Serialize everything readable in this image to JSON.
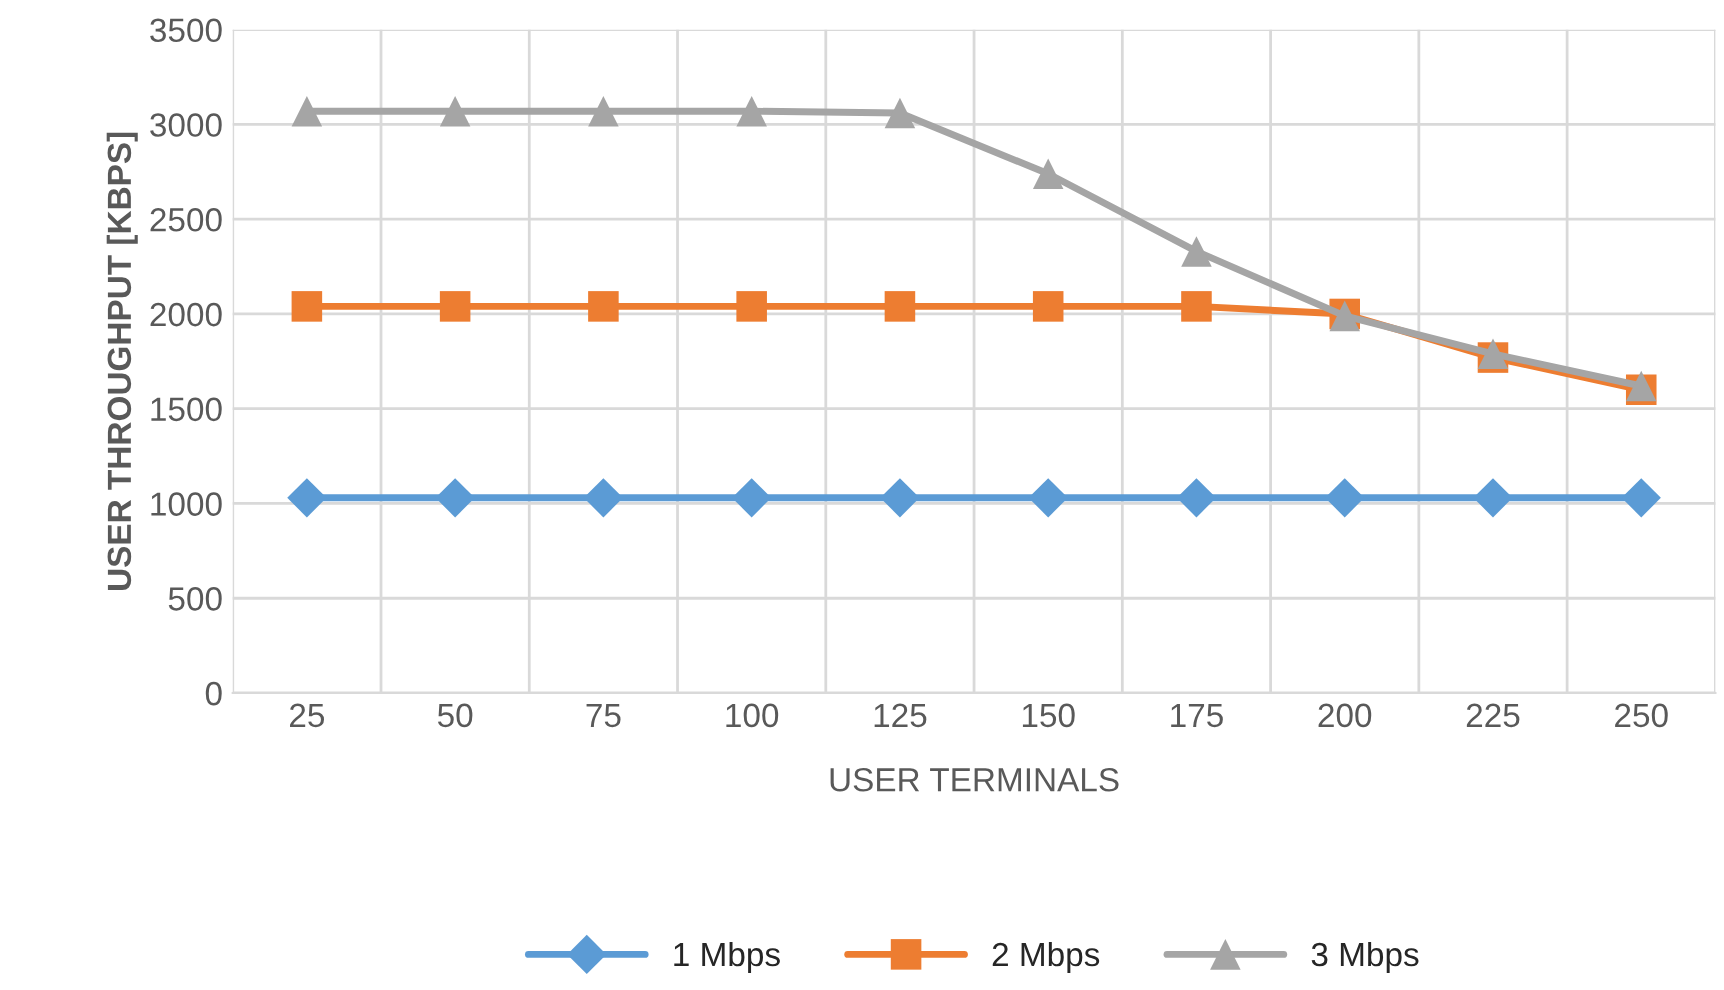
{
  "chart_data": {
    "type": "line",
    "xlabel": "USER TERMINALS",
    "ylabel": "USER THROUGHPUT [KBPS]",
    "categories": [
      "25",
      "50",
      "75",
      "100",
      "125",
      "150",
      "175",
      "200",
      "225",
      "250"
    ],
    "series": [
      {
        "name": "1 Mbps",
        "color": "#5b9bd5",
        "marker": "diamond",
        "values": [
          1030,
          1030,
          1030,
          1030,
          1030,
          1030,
          1030,
          1030,
          1030,
          1030
        ]
      },
      {
        "name": "2 Mbps",
        "color": "#ed7d31",
        "marker": "square",
        "values": [
          2040,
          2040,
          2040,
          2040,
          2040,
          2040,
          2040,
          2000,
          1770,
          1600
        ]
      },
      {
        "name": "3 Mbps",
        "color": "#a5a5a5",
        "marker": "triangle",
        "values": [
          3070,
          3070,
          3070,
          3070,
          3060,
          2740,
          2330,
          1990,
          1790,
          1620
        ]
      }
    ],
    "ylim": [
      0,
      3500
    ],
    "yticks": [
      0,
      500,
      1000,
      1500,
      2000,
      2500,
      3000,
      3500
    ],
    "grid": true,
    "legend": "bottom",
    "line_style": "solid"
  }
}
